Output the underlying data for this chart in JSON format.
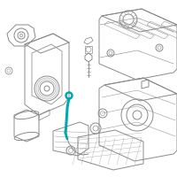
{
  "bg_color": "#ffffff",
  "lc": "#8a8a8a",
  "hc": "#00a8b0",
  "lw": 0.7,
  "fig_w": 2.0,
  "fig_h": 2.0,
  "dpi": 100
}
